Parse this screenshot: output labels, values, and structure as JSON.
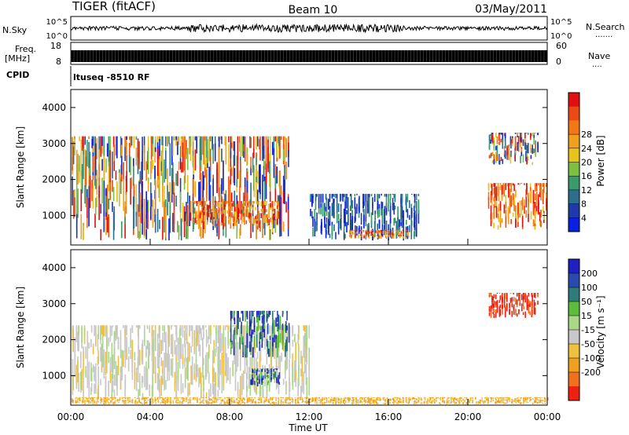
{
  "header": {
    "radar": "TIGER (fitACF)",
    "beam": "Beam 10",
    "date": "03/May/2011"
  },
  "top_panels": {
    "nsky_label": "N.Sky",
    "nsky_ticks": [
      "10^5",
      "10^0"
    ],
    "nsearch_label": "N.Search",
    "nsearch_dots": "·······",
    "freq_label_1": "Freq.",
    "freq_label_2": "[MHz]",
    "freq_ticks": [
      "18",
      "8"
    ],
    "nave_ticks": [
      "60",
      "0"
    ],
    "nave_label": "Nave",
    "nave_dots": "····",
    "cpid_label": "CPID",
    "cpid_value": "ltuseq  -8510  RF"
  },
  "axes": {
    "ylabel": "Slant Range [km]",
    "yticks": [
      "1000",
      "2000",
      "3000",
      "4000"
    ],
    "xlabel": "Time UT",
    "xticks": [
      "00:00",
      "04:00",
      "08:00",
      "12:00",
      "16:00",
      "20:00",
      "00:00"
    ]
  },
  "power_bar": {
    "label": "Power [dB]",
    "ticks": [
      "4",
      "8",
      "12",
      "16",
      "20",
      "24",
      "28"
    ],
    "colors": [
      "#0a1fe0",
      "#1f3aa8",
      "#2d6e8c",
      "#3a9a6a",
      "#7bc043",
      "#e8c21f",
      "#f0a020",
      "#f07818",
      "#ea4a14",
      "#e01010"
    ]
  },
  "velocity_bar": {
    "label": "Velocity [m s⁻¹]",
    "ticks": [
      "200",
      "100",
      "50",
      "15",
      "-15",
      "-50",
      "-100",
      "-200"
    ],
    "colors": [
      "#2020c0",
      "#2a4ab0",
      "#2f7a7a",
      "#5cbd3c",
      "#a8d888",
      "#c8c8c8",
      "#f0c040",
      "#f0a020",
      "#f07020",
      "#ee2010"
    ]
  },
  "chart_data": [
    {
      "type": "heatmap",
      "title": "",
      "quantity": "Power [dB]",
      "xlabel": "Time UT",
      "ylabel": "Slant Range [km]",
      "xlim": [
        0,
        24
      ],
      "ylim": [
        180,
        4500
      ],
      "regions": [
        {
          "t0": 0.0,
          "t1": 11.0,
          "r0": 300,
          "r1": 3200,
          "level": "mixed"
        },
        {
          "t0": 6.0,
          "t1": 10.5,
          "r0": 700,
          "r1": 1400,
          "level": "high"
        },
        {
          "t0": 12.0,
          "t1": 17.5,
          "r0": 300,
          "r1": 1600,
          "level": "low"
        },
        {
          "t0": 14.0,
          "t1": 17.0,
          "r0": 350,
          "r1": 600,
          "level": "high"
        },
        {
          "t0": 21.0,
          "t1": 24.0,
          "r0": 600,
          "r1": 1900,
          "level": "high"
        },
        {
          "t0": 21.0,
          "t1": 23.5,
          "r0": 2400,
          "r1": 3300,
          "level": "mixed"
        }
      ]
    },
    {
      "type": "heatmap",
      "title": "",
      "quantity": "Velocity [m s-1]",
      "xlabel": "Time UT",
      "ylabel": "Slant Range [km]",
      "xlim": [
        0,
        24
      ],
      "ylim": [
        180,
        4500
      ],
      "regions": [
        {
          "t0": 0.0,
          "t1": 12.0,
          "r0": 300,
          "r1": 2400,
          "level": "near zero"
        },
        {
          "t0": 8.0,
          "t1": 11.0,
          "r0": 1500,
          "r1": 2800,
          "level": "positive"
        },
        {
          "t0": 9.0,
          "t1": 10.5,
          "r0": 700,
          "r1": 1200,
          "level": "positive"
        },
        {
          "t0": 0.0,
          "t1": 24.0,
          "r0": 200,
          "r1": 400,
          "level": "negative"
        },
        {
          "t0": 21.0,
          "t1": 23.5,
          "r0": 2600,
          "r1": 3300,
          "level": "strongly negative"
        }
      ]
    }
  ]
}
